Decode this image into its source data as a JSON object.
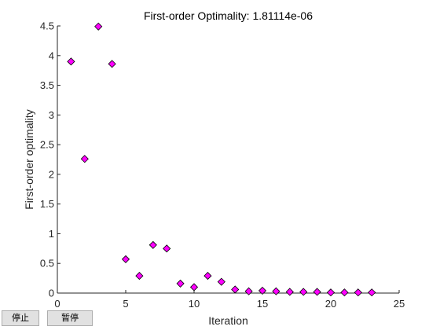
{
  "buttons": {
    "stop_label": "停止",
    "pause_label": "暂停"
  },
  "chart_data": {
    "type": "scatter",
    "title": "First-order Optimality: 1.81114e-06",
    "xlabel": "Iteration",
    "ylabel": "First-order optimality",
    "xlim": [
      0,
      25
    ],
    "ylim": [
      0,
      4.5
    ],
    "xticks": [
      0,
      5,
      10,
      15,
      20,
      25
    ],
    "yticks": [
      0,
      0.5,
      1,
      1.5,
      2,
      2.5,
      3,
      3.5,
      4,
      4.5
    ],
    "grid": false,
    "marker": "diamond",
    "marker_color": "#ff00ff",
    "marker_edge": "#000000",
    "x": [
      1,
      2,
      3,
      4,
      5,
      6,
      7,
      8,
      9,
      10,
      11,
      12,
      13,
      14,
      15,
      16,
      17,
      18,
      19,
      20,
      21,
      22,
      23
    ],
    "y": [
      3.9,
      2.26,
      4.49,
      3.86,
      0.57,
      0.29,
      0.81,
      0.75,
      0.16,
      0.1,
      0.29,
      0.19,
      0.06,
      0.03,
      0.04,
      0.03,
      0.02,
      0.02,
      0.02,
      0.01,
      0.01,
      0.01,
      0.01
    ]
  }
}
